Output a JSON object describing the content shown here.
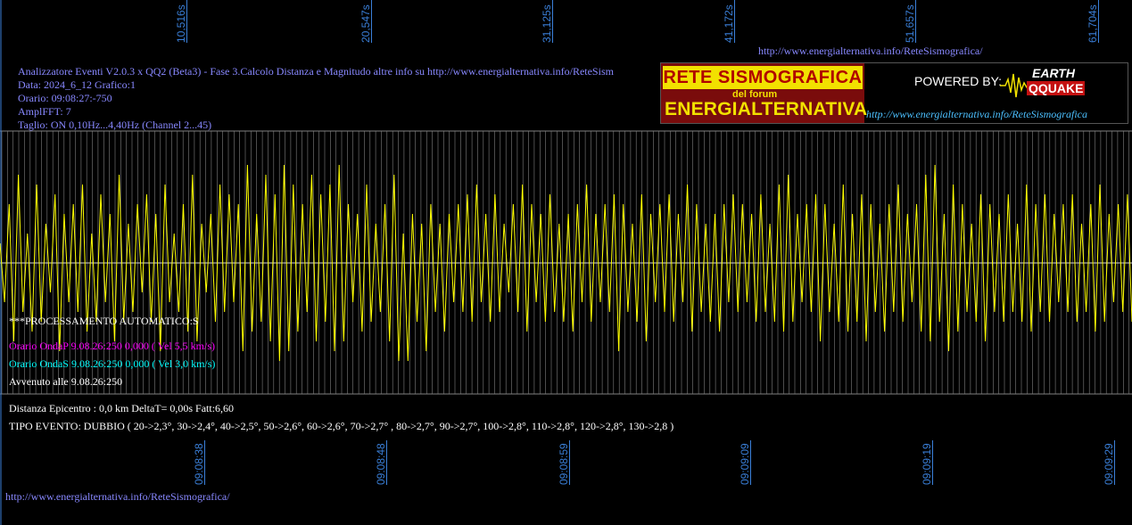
{
  "top_ticks": [
    "10,516s",
    "20,547s",
    "31,125s",
    "41,172s",
    "51,657s",
    "61,704s"
  ],
  "bottom_ticks": [
    "09:08:38",
    "09:08:48",
    "09:08:59",
    "09:09:09",
    "09:09:19",
    "09:09:29"
  ],
  "url_top": "http://www.energialternativa.info/ReteSismografica/",
  "url_bottom": "http://www.energialternativa.info/ReteSismografica/",
  "info": {
    "line1": "Analizzatore Eventi V2.0.3 x QQ2 (Beta3) - Fase 3.Calcolo Distanza e Magnitudo altre info su http://www.energialternativa.info/ReteSism",
    "line2": "Data: 2024_6_12 Grafico:1",
    "line3": "Orario: 09:08:27:-750",
    "line4": "AmplFFT: 7",
    "line5": "Taglio: ON 0,10Hz...4,40Hz       (Channel 2...45)"
  },
  "processing": {
    "header": "***PROCESSAMENTO AUTOMATICO:S",
    "onda_p": "Orario OndaP 9.08.26:250  0,000 ( Vel 5,5 km/s)",
    "onda_s": "Orario OndaS 9.08.26:250  0,000 ( Vel 3,0 km/s)",
    "avvenuto": "Avvenuto alle 9.08.26:250",
    "distanza": "Distanza Epicentro : 0,0 km DeltaT= 0,00s  Fatt:6,60",
    "tipo_evento": "TIPO EVENTO: DUBBIO ( 20->2,3°, 30->2,4°, 40->2,5°, 50->2,6°, 60->2,6°, 70->2,7° , 80->2,7°, 90->2,7°, 100->2,8°, 110->2,8°, 120->2,8°, 130->2,8 )"
  },
  "banner": {
    "title": "RETE SISMOGRAFICA",
    "forum": "del forum",
    "brand": "ENERGIALTERNATIVA",
    "powered": "POWERED BY:",
    "earth": "EARTH",
    "quake": "QQUAKE",
    "url": "http://www.energialternativa.info/ReteSismografica"
  },
  "colors": {
    "trace": "#ffff00",
    "grid": "#808080",
    "axis": "#3a7fd8",
    "info_text": "#8888ff",
    "onda_p": "#ff00ff",
    "onda_s": "#00ffff",
    "white_text": "#ffffff"
  },
  "chart_data": {
    "type": "line",
    "title": "",
    "xlabel": "",
    "ylabel": "",
    "x_ticks_top": [
      "10,516s",
      "20,547s",
      "31,125s",
      "41,172s",
      "51,657s",
      "61,704s"
    ],
    "x_ticks_bottom": [
      "09:08:38",
      "09:08:48",
      "09:08:59",
      "09:09:09",
      "09:09:19",
      "09:09:29"
    ],
    "grid": true,
    "series": [
      {
        "values": [
          0.2,
          -0.4,
          0.6,
          -0.8,
          0.9,
          -0.5,
          0.3,
          -0.7,
          0.8,
          -0.6,
          0.4,
          -0.3,
          0.7,
          -0.9,
          0.5,
          -0.4,
          0.6,
          -0.5,
          0.8,
          -0.7,
          0.3,
          -0.6,
          0.7,
          -0.4,
          0.5,
          -0.8,
          0.9,
          -0.6,
          0.4,
          -0.5,
          0.6,
          -0.3,
          0.7,
          -0.6,
          0.5,
          -0.9,
          0.8,
          -0.4,
          0.3,
          -0.5,
          0.6,
          -0.7,
          0.9,
          -0.8,
          0.4,
          -0.3,
          0.5,
          -0.6,
          0.8,
          -0.5,
          0.7,
          -0.4,
          0.6,
          -0.9,
          1.0,
          -0.7,
          0.5,
          -0.6,
          0.9,
          -0.8,
          0.7,
          -1.0,
          1.0,
          -0.9,
          0.8,
          -0.7,
          0.6,
          -0.5,
          0.9,
          -0.8,
          0.7,
          -0.6,
          0.8,
          -0.9,
          1.0,
          -0.8,
          0.6,
          -0.4,
          0.5,
          -0.7,
          0.8,
          -0.6,
          0.4,
          -0.5,
          0.6,
          -0.8,
          0.9,
          -1.0,
          0.3,
          -1.0,
          0.5,
          -0.6,
          0.4,
          -0.9,
          0.6,
          -0.5,
          0.4,
          -0.7,
          0.5,
          -0.4,
          0.6,
          -0.5,
          0.7,
          -0.6,
          0.8,
          -0.4,
          0.5,
          -0.6,
          0.7,
          -0.5,
          0.4,
          -0.3,
          0.6,
          -0.5,
          0.8,
          -0.7,
          0.6,
          -0.4,
          0.5,
          -0.6,
          0.7,
          -0.5,
          0.4,
          -0.6,
          0.5,
          -0.7,
          0.6,
          -0.4,
          0.8,
          -0.6,
          0.5,
          -0.4,
          0.6,
          -0.5,
          0.7,
          -0.9,
          0.6,
          -0.5,
          0.4,
          -0.6,
          0.7,
          -0.8,
          0.5,
          -0.4,
          0.6,
          -0.5,
          0.7,
          -0.6,
          0.5,
          -0.4,
          0.8,
          -0.7,
          0.6,
          -0.5,
          0.4,
          -0.6,
          0.5,
          -0.7,
          0.6,
          -0.4,
          0.7,
          -0.5,
          0.6,
          -0.4,
          0.5,
          -0.6,
          0.7,
          -0.5,
          0.4,
          -0.6,
          0.8,
          -0.7,
          0.9,
          -0.6,
          0.5,
          -0.4,
          0.6,
          -0.5,
          0.7,
          -0.8,
          0.6,
          -0.5,
          0.4,
          -0.6,
          0.8,
          -0.7,
          0.5,
          -0.6,
          0.7,
          -0.8,
          0.6,
          -0.5,
          0.4,
          -0.7,
          0.6,
          -0.5,
          0.8,
          -0.6,
          0.5,
          -0.4,
          0.6,
          -0.7,
          0.9,
          -0.8,
          1.0,
          -0.6,
          0.5,
          -0.9,
          0.8,
          -0.7,
          0.6,
          -0.5,
          0.4,
          -0.6,
          0.7,
          -0.8,
          0.6,
          -0.5,
          0.5,
          -0.6,
          0.7,
          -0.5,
          0.4,
          -0.6,
          0.8,
          -0.7,
          0.6,
          -0.5,
          0.7,
          -0.6,
          0.5,
          -0.4,
          0.6,
          -0.5,
          0.7,
          -0.6,
          0.4,
          -0.5,
          0.6,
          -0.7,
          0.8,
          -0.6,
          0.5,
          -0.4,
          0.6,
          -0.5,
          0.7,
          -0.6
        ]
      }
    ]
  }
}
